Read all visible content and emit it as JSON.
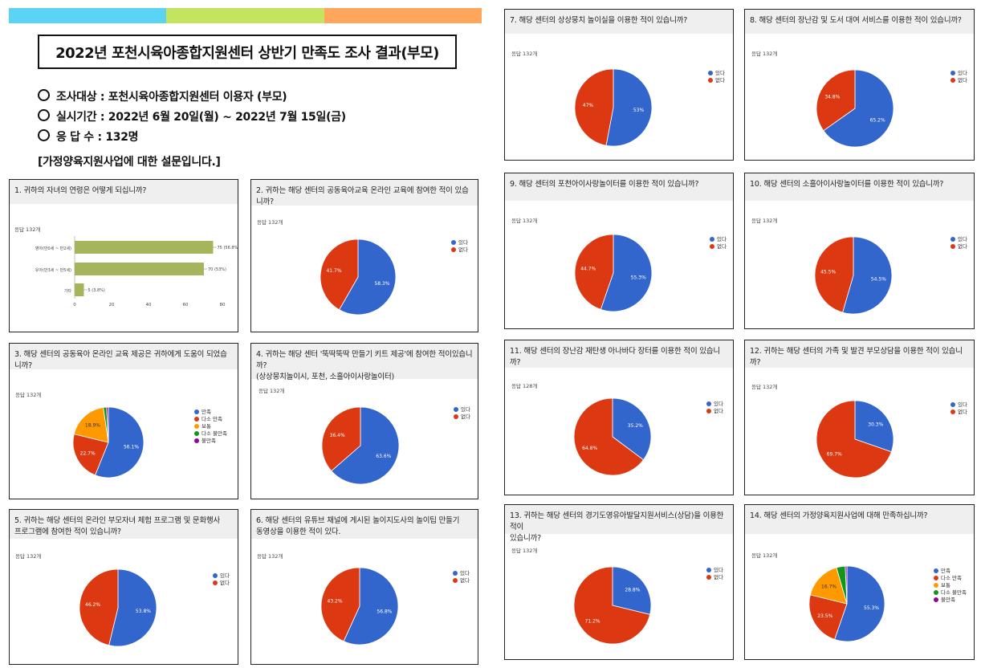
{
  "header": {
    "title": "2022년 포천시육아종합지원센터 상반기 만족도 조사 결과(부모)",
    "info": [
      "조사대상 : 포천시육아종합지원센터 이용자 (부모)",
      "실시기간 : 2022년 6월 20일(월) ~ 2022년 7월 15일(금)",
      "응 답 수 : 132명"
    ],
    "section_note": "[가정양육지원사업에 대한 설문입니다.]",
    "stripe_colors": [
      "#5ad3f5",
      "#c4e35e",
      "#ffa65c"
    ]
  },
  "colors": {
    "blue": "#3366cc",
    "red": "#dc3912",
    "orange": "#ff9900",
    "green": "#109618",
    "purple": "#990099",
    "bar": "#a4b55c"
  },
  "questions": {
    "q1": {
      "title": "1. 귀하의 자녀의 연령은 어떻게 되십니까?",
      "responses": "응답 132개"
    },
    "q2": {
      "title": "2. 귀하는 해당 센터의 공동육아교육 온라인 교육에 참여한 적이 있습니까?",
      "responses": "응답 132개"
    },
    "q3": {
      "title": "3. 해당 센터의 공동육아 온라인 교육 제공은 귀하에게 도움이 되었습니까?",
      "responses": "응답 132개"
    },
    "q4": {
      "title": "4. 귀하는 해당 센터 '뚝딱뚝딱 만들기 키트 제공'에 참여한 적이있습니까?",
      "title2": "(상상뭉치놀이시, 포천, 소흘아이사랑놀이터)",
      "responses": "응답 132개"
    },
    "q5": {
      "title": "5. 귀하는 해당 센터의 온라인 부모자녀 체험 프로그램 및 문화행사",
      "title2": "프로그램에 참여한 적이 있습니까?",
      "responses": "응답 132개"
    },
    "q6": {
      "title": "6. 해당 센터의 유튜브 채널에 게시된 놀이지도사의 놀이팁 만들기",
      "title2": "동영상을 이용한 적이 있다.",
      "responses": "응답 132개"
    },
    "q7": {
      "title": "7. 해당 센터의 상상뭉치 놀이실을 이용한 적이 있습니까?",
      "responses": "응답 132개"
    },
    "q8": {
      "title": "8. 해당 센터의 장난감 및 도서 대여 서비스를 이용한 적이 있습니까?",
      "responses": "응답 132개"
    },
    "q9": {
      "title": "9. 해당 센터의 포천아이사랑놀이터를 이용한 적이 있습니까?",
      "responses": "응답 132개"
    },
    "q10": {
      "title": "10. 해당 센터의 소흘아이사랑놀이터를 이용한 적이 있습니까?",
      "responses": "응답 132개"
    },
    "q11": {
      "title": "11. 해당 센터의 장난감 재탄생 아나바다 장터를 이용한 적이 있습니까?",
      "responses": "응답 128개"
    },
    "q12": {
      "title": "12. 귀하는 해당 센터의 가족 및 발견 부모상담을 이용한 적이 있습니까?",
      "responses": "응답 132개"
    },
    "q13": {
      "title": "13. 귀하는 해당 센터의 경기도영유아발달지원서비스(상담)을 이용한 적이",
      "title2": "있습니까?",
      "responses": "응답 132개"
    },
    "q14": {
      "title": "14. 해당 센터의 가정양육지원사업에 대해 만족하십니까?",
      "responses": "응답 132개"
    }
  },
  "legends": {
    "yesno": [
      "있다",
      "없다"
    ],
    "satisfaction": [
      "만족",
      "다소 만족",
      "보통",
      "다소 불만족",
      "불만족"
    ]
  },
  "chart_data": [
    {
      "id": "q1",
      "type": "bar",
      "orientation": "horizontal",
      "categories": [
        "영아(만0세 ~ 만2세)",
        "유아(만3세 ~ 만5세)",
        "기타"
      ],
      "values": [
        75,
        70,
        5
      ],
      "data_labels": [
        "75 (56.8%)",
        "70 (53%)",
        "5 (3.8%)"
      ],
      "xlim": [
        0,
        80
      ],
      "xticks": [
        0,
        20,
        40,
        60,
        80
      ]
    },
    {
      "id": "q2",
      "type": "pie",
      "labels": [
        "있다",
        "없다"
      ],
      "values": [
        58.3,
        41.7
      ]
    },
    {
      "id": "q3",
      "type": "pie",
      "labels": [
        "만족",
        "다소 만족",
        "보통",
        "다소 불만족",
        "불만족"
      ],
      "values": [
        56.1,
        22.7,
        18.9,
        1.5,
        0.8
      ]
    },
    {
      "id": "q4",
      "type": "pie",
      "labels": [
        "있다",
        "없다"
      ],
      "values": [
        63.6,
        36.4
      ]
    },
    {
      "id": "q5",
      "type": "pie",
      "labels": [
        "있다",
        "없다"
      ],
      "values": [
        53.8,
        46.2
      ]
    },
    {
      "id": "q6",
      "type": "pie",
      "labels": [
        "있다",
        "없다"
      ],
      "values": [
        56.8,
        43.2
      ]
    },
    {
      "id": "q7",
      "type": "pie",
      "labels": [
        "있다",
        "없다"
      ],
      "values": [
        53,
        47
      ]
    },
    {
      "id": "q8",
      "type": "pie",
      "labels": [
        "있다",
        "없다"
      ],
      "values": [
        65.2,
        34.8
      ]
    },
    {
      "id": "q9",
      "type": "pie",
      "labels": [
        "있다",
        "없다"
      ],
      "values": [
        55.3,
        44.7
      ]
    },
    {
      "id": "q10",
      "type": "pie",
      "labels": [
        "있다",
        "없다"
      ],
      "values": [
        54.5,
        45.5
      ]
    },
    {
      "id": "q11",
      "type": "pie",
      "labels": [
        "있다",
        "없다"
      ],
      "values": [
        35.2,
        64.8
      ]
    },
    {
      "id": "q12",
      "type": "pie",
      "labels": [
        "있다",
        "없다"
      ],
      "values": [
        30.3,
        69.7
      ]
    },
    {
      "id": "q13",
      "type": "pie",
      "labels": [
        "있다",
        "없다"
      ],
      "values": [
        28.8,
        71.2
      ]
    },
    {
      "id": "q14",
      "type": "pie",
      "labels": [
        "만족",
        "다소 만족",
        "보통",
        "다소 불만족",
        "불만족"
      ],
      "values": [
        55.3,
        23.5,
        16.7,
        3.8,
        0.7
      ]
    }
  ]
}
